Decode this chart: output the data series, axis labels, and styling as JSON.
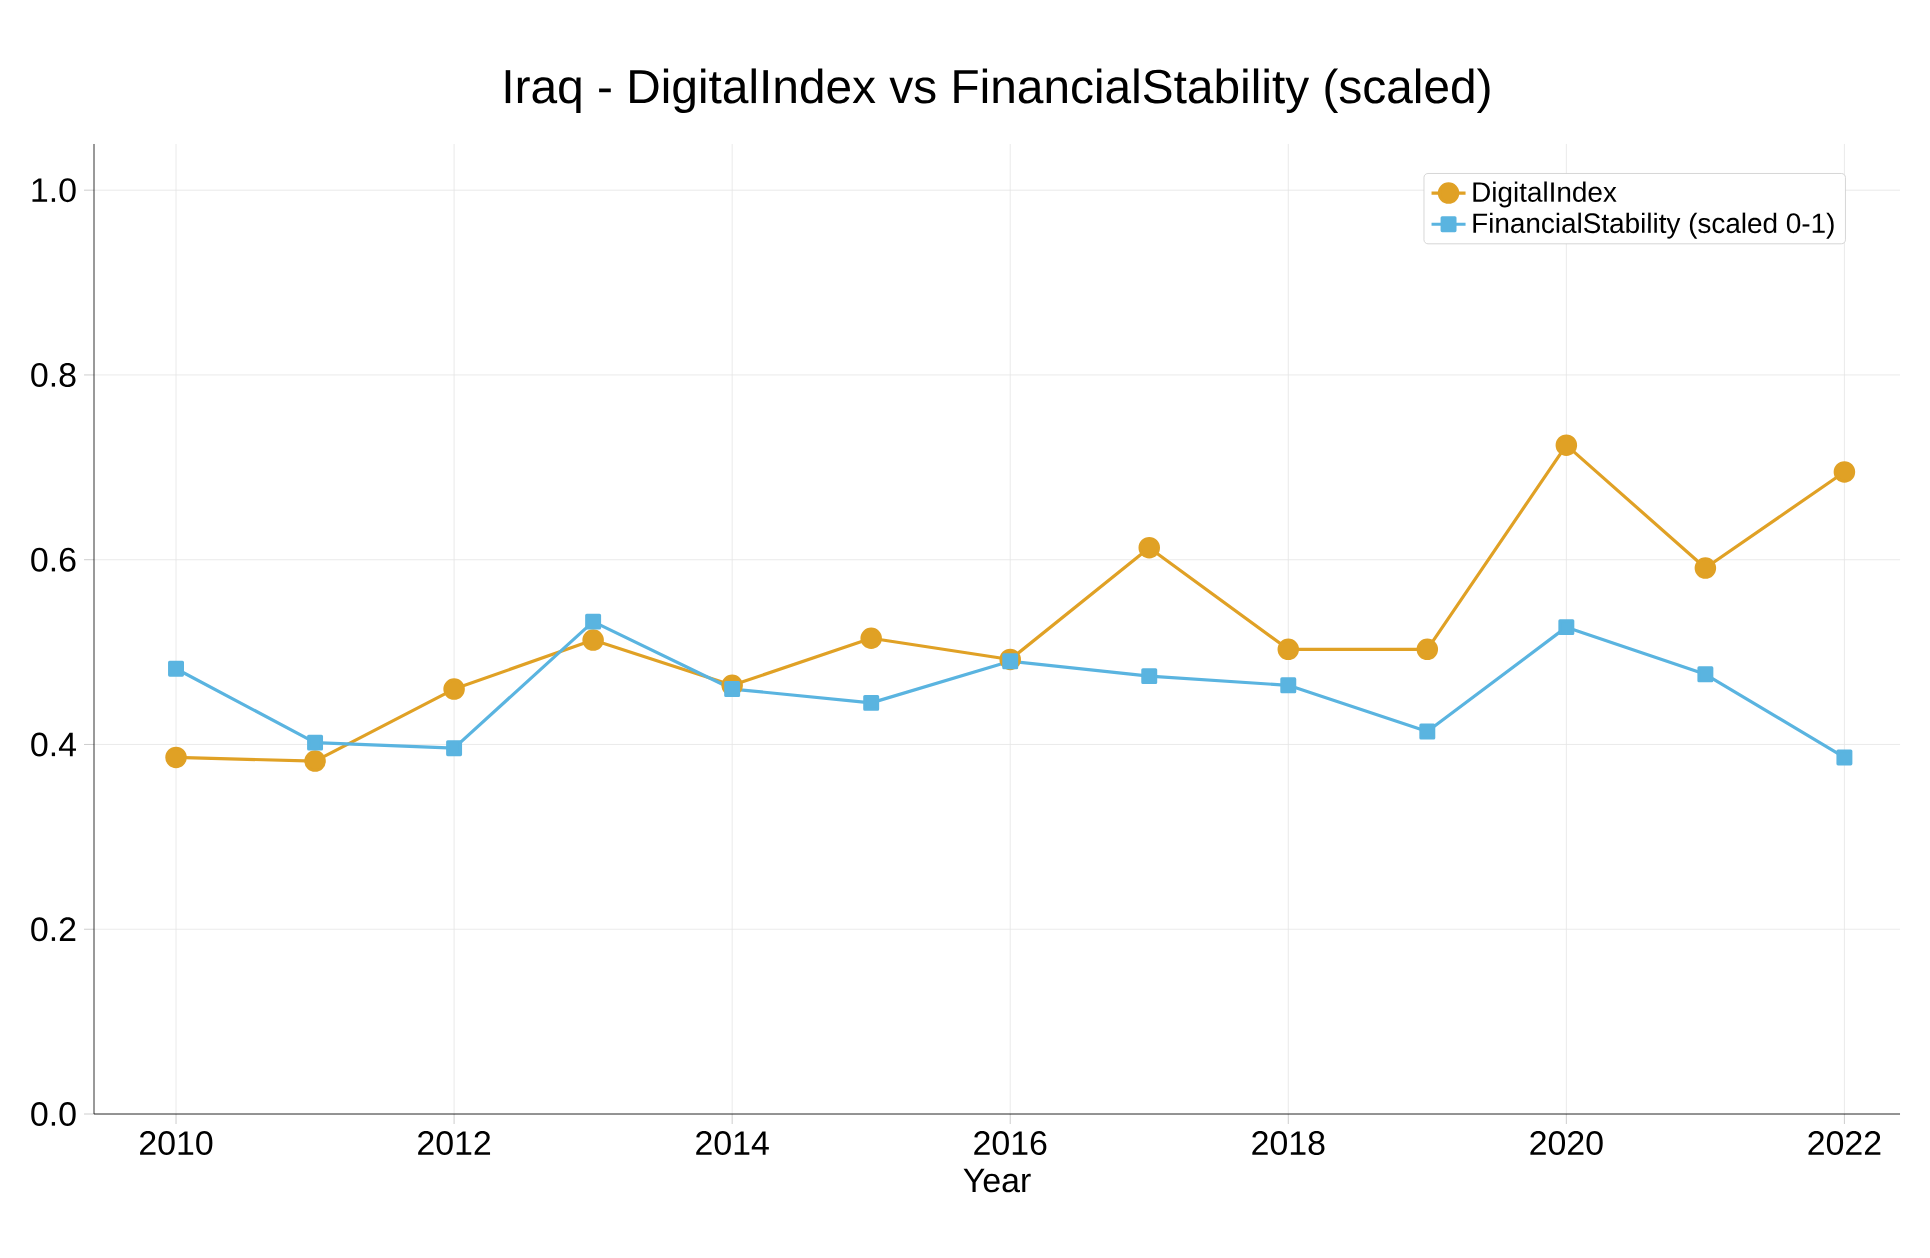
{
  "chart_data": {
    "type": "line",
    "title": "Iraq - DigitalIndex vs FinancialStability (scaled)",
    "xlabel": "Year",
    "x": [
      2010,
      2011,
      2012,
      2013,
      2014,
      2015,
      2016,
      2017,
      2018,
      2019,
      2020,
      2021,
      2022
    ],
    "series": [
      {
        "name": "DigitalIndex",
        "color": "#e0a125",
        "marker": "circle",
        "values": [
          0.386,
          0.382,
          0.46,
          0.513,
          0.464,
          0.515,
          0.492,
          0.613,
          0.503,
          0.503,
          0.724,
          0.591,
          0.695
        ]
      },
      {
        "name": "FinancialStability (scaled 0-1)",
        "color": "#5ab4e0",
        "marker": "square",
        "values": [
          0.482,
          0.402,
          0.396,
          0.533,
          0.46,
          0.445,
          0.49,
          0.474,
          0.464,
          0.414,
          0.527,
          0.476,
          0.386
        ]
      }
    ],
    "xlim": [
      2009.41,
      2022.4
    ],
    "ylim": [
      0,
      1.05
    ],
    "xticks": [
      2010,
      2012,
      2014,
      2016,
      2018,
      2020,
      2022
    ],
    "yticks": [
      {
        "value": 0,
        "label": "0.0"
      },
      {
        "value": 0.2,
        "label": "0.2"
      },
      {
        "value": 0.4,
        "label": "0.4"
      },
      {
        "value": 0.6,
        "label": "0.6"
      },
      {
        "value": 0.8,
        "label": "0.8"
      },
      {
        "value": 1.0,
        "label": "1.0"
      }
    ],
    "grid": true,
    "legend": "top right",
    "line_style": "solid"
  }
}
